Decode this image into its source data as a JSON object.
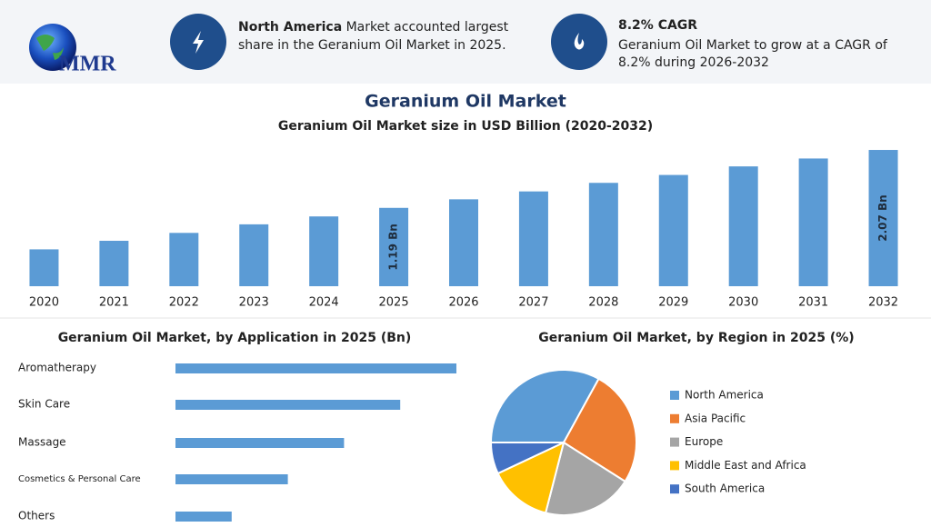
{
  "header": {
    "logo_text": "MMR",
    "highlights": [
      {
        "bold": "North America",
        "lines": [
          "Market accounted largest",
          "share in the Geranium Oil Market in 2025."
        ]
      },
      {
        "bold": "8.2% CAGR",
        "lines": [
          "Geranium Oil Market to grow at a CAGR of",
          "8.2% during 2026-2032"
        ]
      }
    ],
    "title": "Geranium Oil Market"
  },
  "chart_data": [
    {
      "type": "bar",
      "title": "Geranium Oil Market size in USD Billion (2020-2032)",
      "categories": [
        "2020",
        "2021",
        "2022",
        "2023",
        "2024",
        "2025",
        "2026",
        "2027",
        "2028",
        "2029",
        "2030",
        "2031",
        "2032"
      ],
      "values": [
        0.56,
        0.69,
        0.81,
        0.94,
        1.06,
        1.19,
        1.32,
        1.44,
        1.57,
        1.69,
        1.82,
        1.94,
        2.07
      ],
      "value_labels": [
        null,
        null,
        null,
        null,
        null,
        "1.19 Bn",
        null,
        null,
        null,
        null,
        null,
        null,
        "2.07 Bn"
      ],
      "color": "#5b9bd5",
      "ylim": [
        0,
        2.2
      ]
    },
    {
      "type": "hbar",
      "title": "Geranium Oil Market, by Application in 2025 (Bn)",
      "categories": [
        "Aromatherapy",
        "Skin Care",
        "Massage",
        "Cosmetics & Personal Care",
        "Others"
      ],
      "values": [
        0.4,
        0.32,
        0.24,
        0.16,
        0.08
      ],
      "color": "#5b9bd5",
      "xlim": [
        0,
        0.4
      ]
    },
    {
      "type": "pie",
      "title": "Geranium Oil Market, by Region in 2025 (%)",
      "categories": [
        "North America",
        "Asia Pacific",
        "Europe",
        "Middle East and Africa",
        "South America"
      ],
      "values": [
        33,
        26,
        20,
        14,
        7
      ],
      "colors": [
        "#5b9bd5",
        "#ed7d31",
        "#a5a5a5",
        "#ffc000",
        "#4472c4"
      ],
      "legend": "right"
    }
  ]
}
